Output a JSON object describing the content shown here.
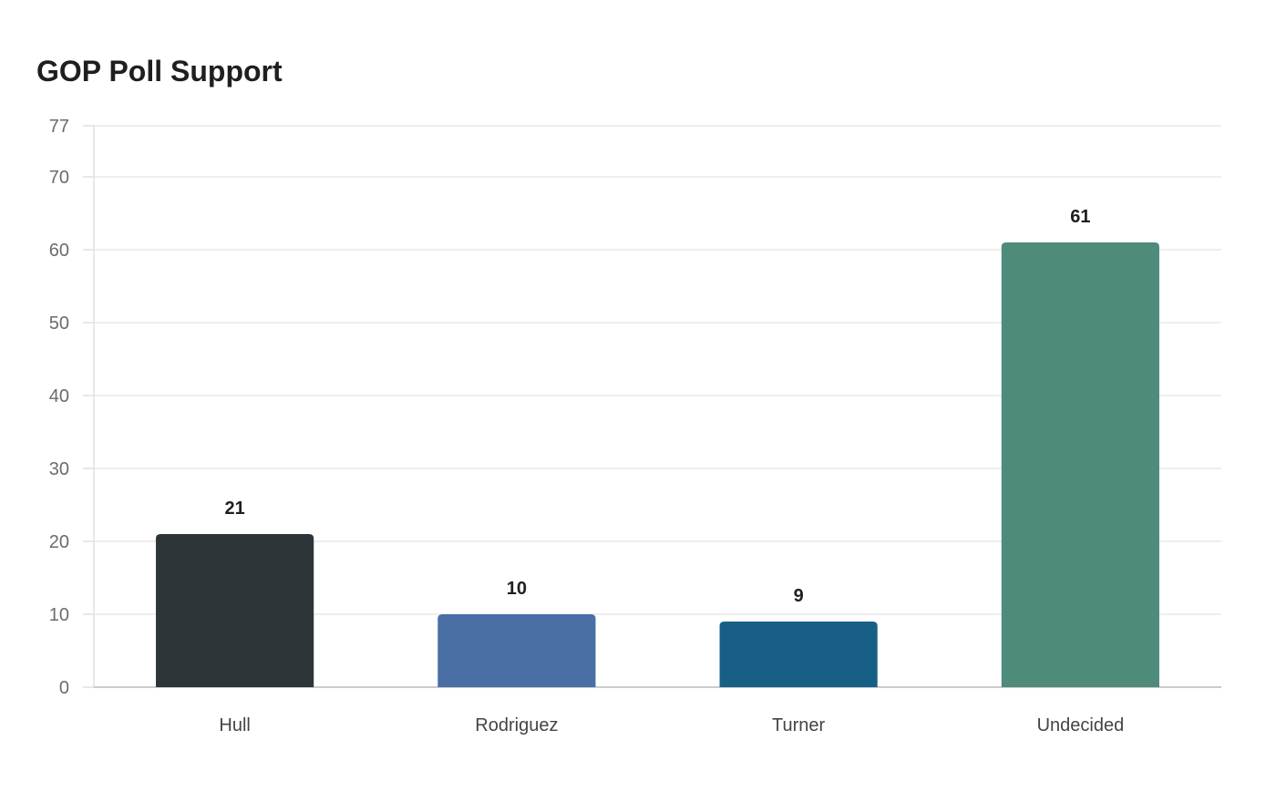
{
  "chart_data": {
    "type": "bar",
    "title": "GOP Poll Support",
    "xlabel": "",
    "ylabel": "",
    "categories": [
      "Hull",
      "Rodriguez",
      "Turner",
      "Undecided"
    ],
    "values": [
      21,
      10,
      9,
      61
    ],
    "colors": [
      "#2d3538",
      "#4a6fa5",
      "#185f86",
      "#4e8b7a"
    ],
    "ylim": [
      0,
      77
    ],
    "yticks": [
      0,
      10,
      20,
      30,
      40,
      50,
      60,
      70,
      77
    ],
    "grid": true,
    "legend": "none"
  }
}
